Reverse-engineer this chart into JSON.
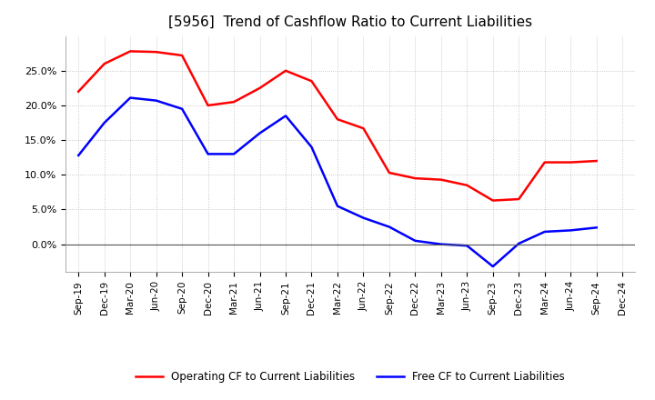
{
  "title": "[5956]  Trend of Cashflow Ratio to Current Liabilities",
  "x_labels": [
    "Sep-19",
    "Dec-19",
    "Mar-20",
    "Jun-20",
    "Sep-20",
    "Dec-20",
    "Mar-21",
    "Jun-21",
    "Sep-21",
    "Dec-21",
    "Mar-22",
    "Jun-22",
    "Sep-22",
    "Dec-22",
    "Mar-23",
    "Jun-23",
    "Sep-23",
    "Dec-23",
    "Mar-24",
    "Jun-24",
    "Sep-24",
    "Dec-24"
  ],
  "operating_cf": [
    0.22,
    0.26,
    0.278,
    0.277,
    0.272,
    0.2,
    0.205,
    0.225,
    0.25,
    0.235,
    0.18,
    0.167,
    0.103,
    0.095,
    0.093,
    0.085,
    0.063,
    0.065,
    0.118,
    0.118,
    0.12,
    null
  ],
  "free_cf": [
    0.128,
    0.175,
    0.211,
    0.207,
    0.195,
    0.13,
    0.13,
    0.16,
    0.185,
    0.14,
    0.055,
    0.038,
    0.025,
    0.005,
    0.0,
    -0.002,
    -0.032,
    0.001,
    0.018,
    0.02,
    0.024,
    null
  ],
  "operating_color": "#ff0000",
  "free_color": "#0000ff",
  "ylim": [
    -0.04,
    0.3
  ],
  "yticks": [
    0.0,
    0.05,
    0.1,
    0.15,
    0.2,
    0.25
  ],
  "background_color": "#ffffff",
  "grid_color": "#bbbbbb",
  "legend_operating": "Operating CF to Current Liabilities",
  "legend_free": "Free CF to Current Liabilities",
  "title_fontsize": 11,
  "line_width": 1.8
}
